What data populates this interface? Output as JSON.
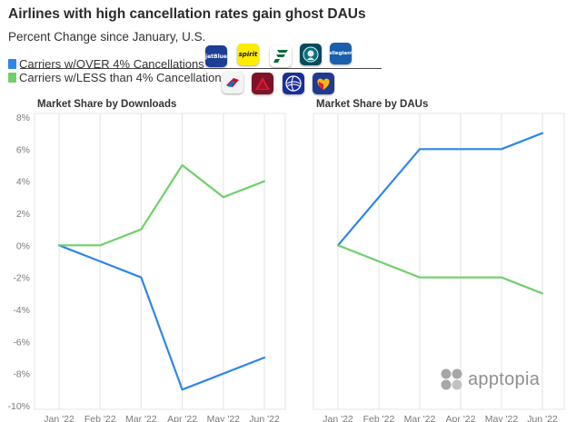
{
  "title": "Airlines with high cancellation rates gain ghost DAUs",
  "subtitle": "Percent Change since January, U.S.",
  "legend": [
    {
      "label": "Carriers w/OVER 4% Cancellations",
      "color": "#2e86e8"
    },
    {
      "label": "Carriers w/LESS than 4% Cancellations",
      "color": "#6fd06a"
    }
  ],
  "airline_icons": {
    "over": [
      {
        "icon": "jetblue-logo-icon",
        "text": "jetBlue"
      },
      {
        "icon": "spirit-logo-icon",
        "text": "spirit"
      },
      {
        "icon": "frontier-logo-icon",
        "text": ""
      },
      {
        "icon": "alaska-logo-icon",
        "text": ""
      },
      {
        "icon": "allegiant-logo-icon",
        "text": "allegiant"
      }
    ],
    "less": [
      {
        "icon": "american-logo-icon",
        "text": ""
      },
      {
        "icon": "delta-logo-icon",
        "text": ""
      },
      {
        "icon": "united-logo-icon",
        "text": ""
      },
      {
        "icon": "southwest-logo-icon",
        "text": ""
      }
    ]
  },
  "brand": {
    "text": "apptopia"
  },
  "chart_data": [
    {
      "type": "line",
      "title": "Market Share by Downloads",
      "categories": [
        "Jan '22",
        "Feb '22",
        "Mar '22",
        "Apr '22",
        "May '22",
        "Jun '22"
      ],
      "ylim": [
        -10,
        8
      ],
      "yticks": [
        "8%",
        "6%",
        "4%",
        "2%",
        "0%",
        "-2%",
        "-4%",
        "-6%",
        "-8%",
        "-10%"
      ],
      "series": [
        {
          "name": "Carriers w/OVER 4% Cancellations",
          "color": "#2e86e8",
          "values": [
            0,
            -1,
            -2,
            -9,
            -8,
            -7
          ]
        },
        {
          "name": "Carriers w/LESS than 4% Cancellations",
          "color": "#6fd06a",
          "values": [
            0,
            0,
            1,
            5,
            3,
            4
          ]
        }
      ]
    },
    {
      "type": "line",
      "title": "Market Share by DAUs",
      "categories": [
        "Jan '22",
        "Feb '22",
        "Mar '22",
        "Apr '22",
        "May '22",
        "Jun '22"
      ],
      "ylim": [
        -10,
        8
      ],
      "series": [
        {
          "name": "Carriers w/OVER 4% Cancellations",
          "color": "#2e86e8",
          "values": [
            0,
            3,
            6,
            6,
            6,
            7
          ]
        },
        {
          "name": "Carriers w/LESS than 4% Cancellations",
          "color": "#6fd06a",
          "values": [
            0,
            -1,
            -2,
            -2,
            -2,
            -3
          ]
        }
      ]
    }
  ]
}
